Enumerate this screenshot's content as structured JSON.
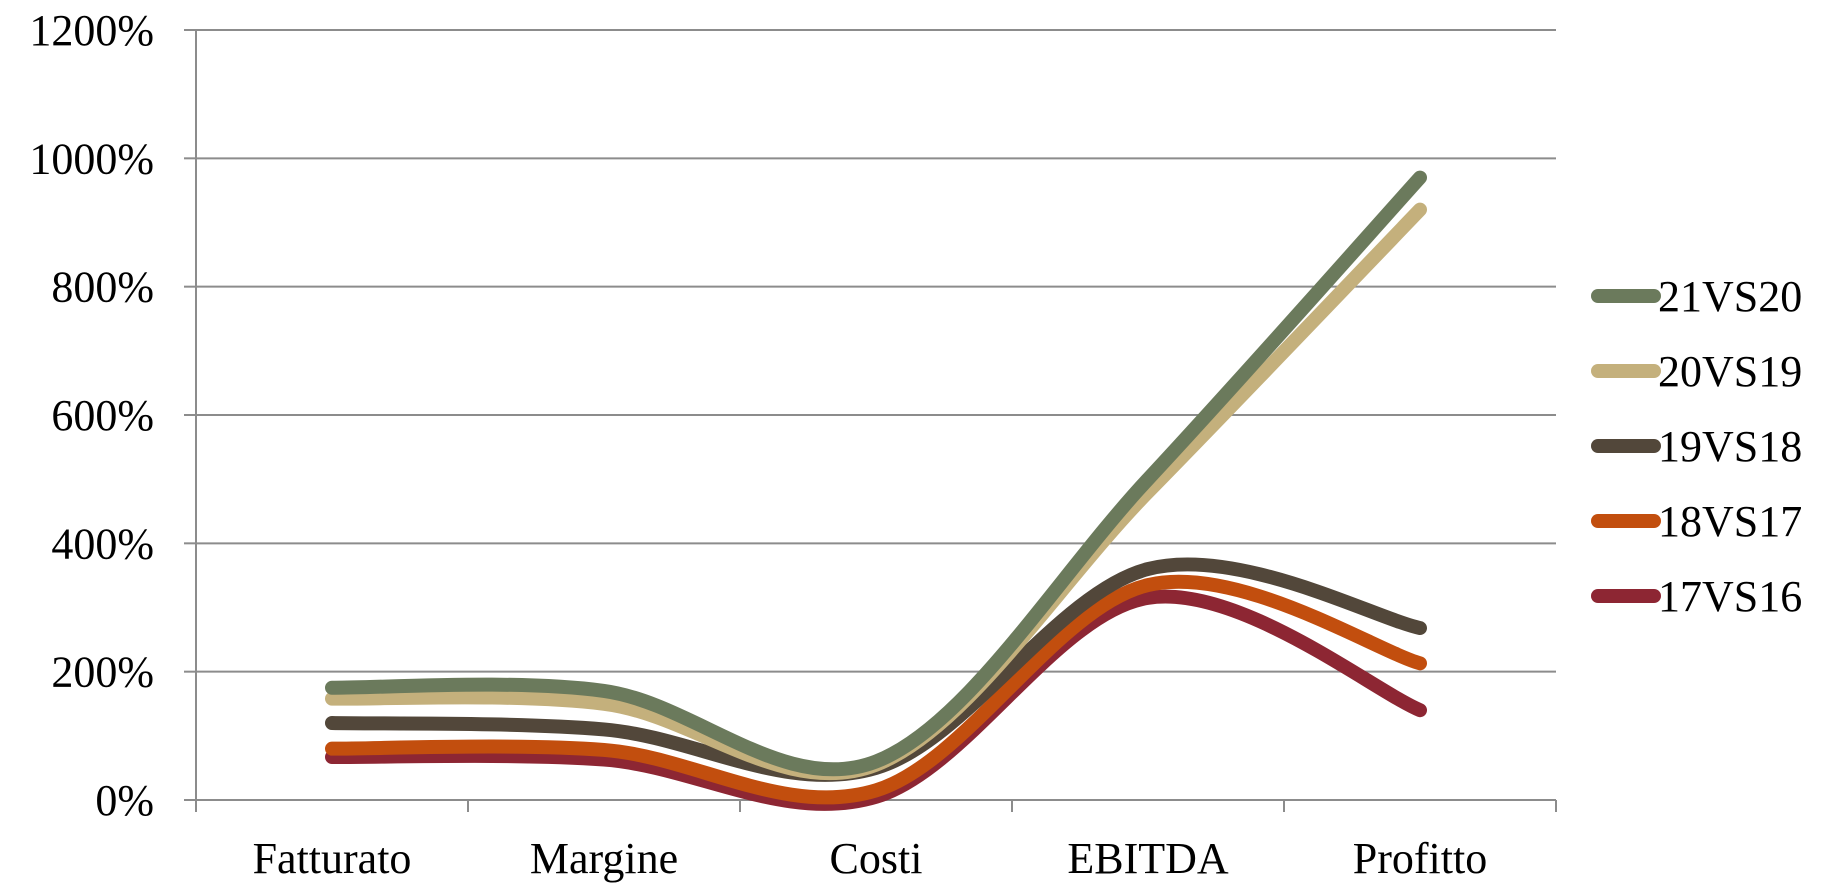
{
  "chart_data": {
    "type": "line",
    "smooth": true,
    "title": "",
    "xlabel": "",
    "ylabel": "",
    "categories": [
      "Fatturato",
      "Margine",
      "Costi",
      "EBITDA",
      "Profitto"
    ],
    "ylim": [
      0,
      1200
    ],
    "yticks": [
      0,
      200,
      400,
      600,
      800,
      1000,
      1200
    ],
    "ytick_labels": [
      "0%",
      "200%",
      "400%",
      "600%",
      "800%",
      "1000%",
      "1200%"
    ],
    "grid": "horizontal",
    "legend_position": "right",
    "series": [
      {
        "name": "21VS20",
        "color": "#6b7a5c",
        "values": [
          175,
          170,
          60,
          500,
          970
        ]
      },
      {
        "name": "20VS19",
        "color": "#c4b07c",
        "values": [
          158,
          150,
          55,
          480,
          920
        ]
      },
      {
        "name": "19VS18",
        "color": "#52473a",
        "values": [
          120,
          110,
          50,
          360,
          268
        ]
      },
      {
        "name": "18VS17",
        "color": "#c24e0e",
        "values": [
          80,
          78,
          15,
          335,
          213
        ]
      },
      {
        "name": "17VS16",
        "color": "#8d2633",
        "values": [
          67,
          63,
          5,
          315,
          140
        ]
      }
    ]
  }
}
